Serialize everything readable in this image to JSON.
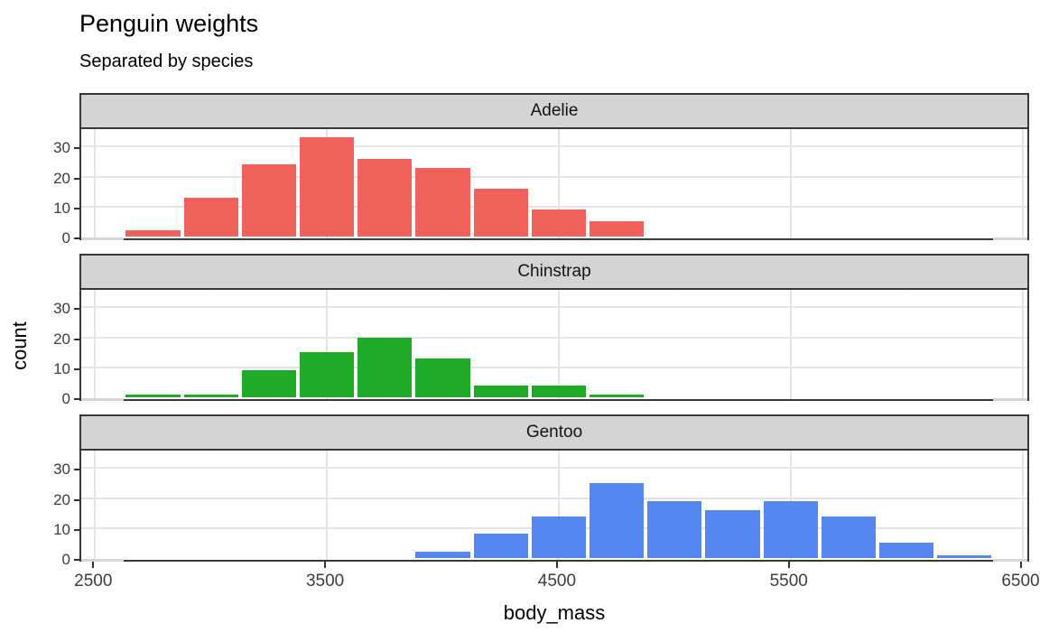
{
  "title": "Penguin weights",
  "subtitle": "Separated by species",
  "x_axis": {
    "label": "body_mass",
    "ticks": [
      2500,
      3500,
      4500,
      5500,
      6500
    ],
    "minor_ticks": [
      3000,
      4000,
      5000,
      6000
    ]
  },
  "y_axis": {
    "label": "count",
    "ticks": [
      0,
      10,
      20,
      30
    ],
    "minor_gridlines": [
      5,
      15,
      25,
      35
    ]
  },
  "chart_data": {
    "type": "bar",
    "subtype": "faceted-histogram",
    "facet_by": "species",
    "x_variable": "body_mass",
    "y_variable": "count",
    "bin_width": 250,
    "x_range_shown": [
      2440,
      6537
    ],
    "y_range_shown": [
      0,
      36
    ],
    "facets": [
      {
        "label": "Adelie",
        "color": "#f2605c",
        "bin_start": 2625,
        "counts": [
          2,
          13,
          24,
          33,
          26,
          23,
          16,
          9,
          5
        ]
      },
      {
        "label": "Chinstrap",
        "color": "#1fab25",
        "bin_start": 2625,
        "counts": [
          1,
          1,
          9,
          15,
          20,
          13,
          4,
          4,
          1
        ]
      },
      {
        "label": "Gentoo",
        "color": "#5488f0",
        "bin_start": 3875,
        "counts": [
          2,
          8,
          14,
          25,
          19,
          16,
          19,
          14,
          5,
          1
        ]
      }
    ],
    "edge_empty_bins": [
      2375,
      6375
    ],
    "grid": true,
    "legend": "none"
  },
  "colors": {
    "strip_background": "#d4d4d4",
    "panel_border": "#383838",
    "grid_major": "#e4e4e4",
    "grid_minor": "#f1f1f1",
    "edge_notch": "#d6d6d6",
    "axis_text": "#3d3d3d",
    "title_text": "#000000"
  }
}
